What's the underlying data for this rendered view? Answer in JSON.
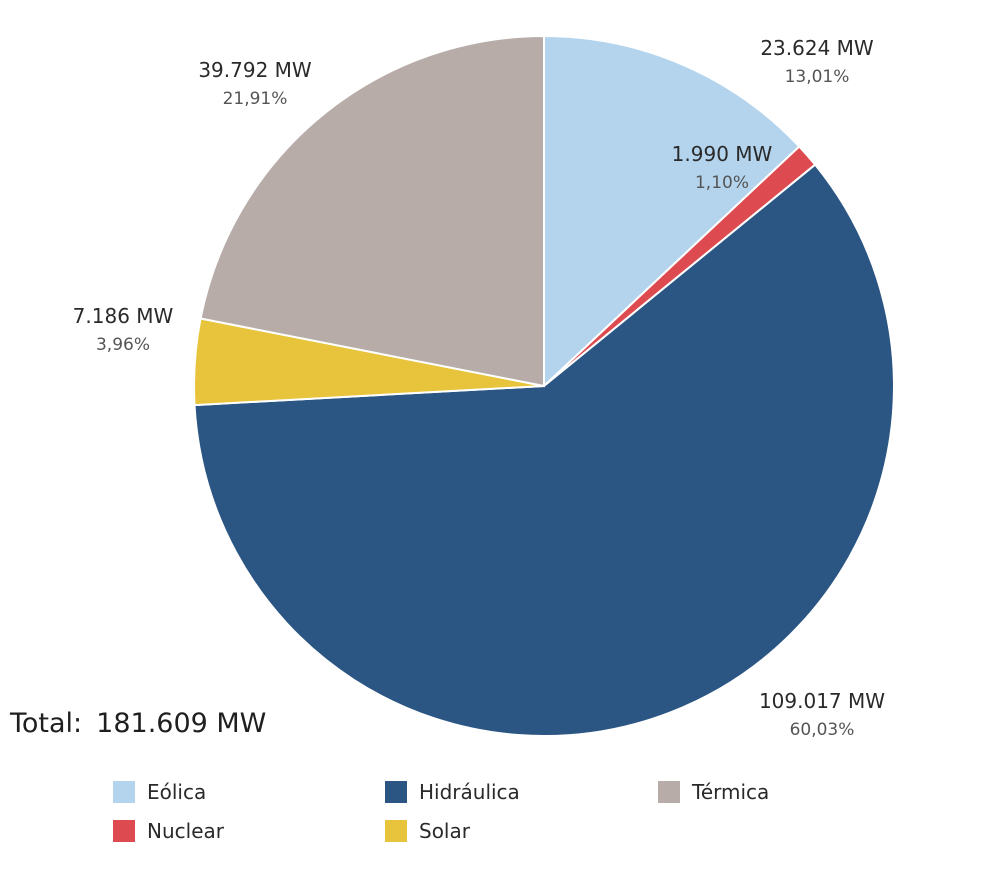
{
  "chart_data": {
    "type": "pie",
    "slices": [
      {
        "name": "Eólica",
        "value": 23624,
        "value_label": "23.624 MW",
        "percent_label": "13,01%",
        "color": "#b3d4ec"
      },
      {
        "name": "Nuclear",
        "value": 1990,
        "value_label": "1.990 MW",
        "percent_label": "1,10%",
        "color": "#dd4b50"
      },
      {
        "name": "Hidráulica",
        "value": 109017,
        "value_label": "109.017 MW",
        "percent_label": "60,03%",
        "color": "#2b5583"
      },
      {
        "name": "Solar",
        "value": 7186,
        "value_label": "7.186 MW",
        "percent_label": "3,96%",
        "color": "#e8c43d"
      },
      {
        "name": "Térmica",
        "value": 39792,
        "value_label": "39.792 MW",
        "percent_label": "21,91%",
        "color": "#b7aca8"
      }
    ],
    "start_angle": "12 o'clock",
    "direction": "clockwise",
    "legend_position": "bottom"
  },
  "total": {
    "label": "Total:",
    "value": "181.609 MW"
  },
  "legend": [
    {
      "label": "Eólica",
      "color": "#b3d4ec"
    },
    {
      "label": "Hidráulica",
      "color": "#2b5583"
    },
    {
      "label": "Térmica",
      "color": "#b7aca8"
    },
    {
      "label": "Nuclear",
      "color": "#dd4b50"
    },
    {
      "label": "Solar",
      "color": "#e8c43d"
    }
  ]
}
